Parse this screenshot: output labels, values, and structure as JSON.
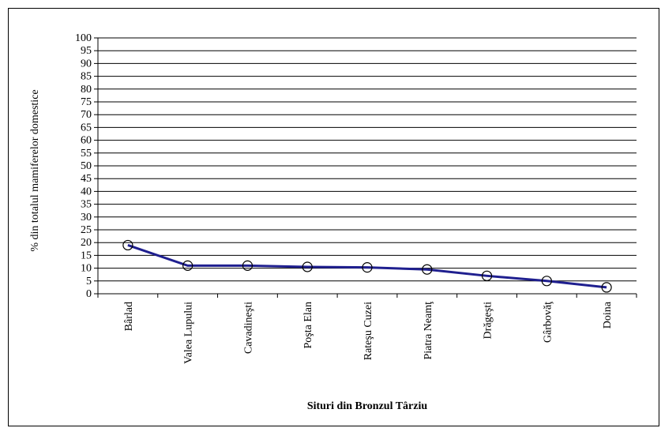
{
  "chart_data": {
    "type": "line",
    "categories": [
      "Bârlad",
      "Valea Lupului",
      "Cavadineşti",
      "Poşta Elan",
      "Rateşu Cuzei",
      "Piatra Neamţ",
      "Drăgeşti",
      "Gârbovăţ",
      "Doina"
    ],
    "values": [
      19,
      11,
      11,
      10.5,
      10.3,
      9.5,
      7,
      5,
      2.5
    ],
    "xlabel": "Situri din Bronzul Târziu",
    "ylabel": "% din totalul mamiferelor domestice",
    "ylim": [
      0,
      100
    ],
    "yticks": [
      0,
      5,
      10,
      15,
      20,
      25,
      30,
      35,
      40,
      45,
      50,
      55,
      60,
      65,
      70,
      75,
      80,
      85,
      90,
      95,
      100
    ],
    "grid": true,
    "line_color": "#1f1f8f",
    "marker": "open-circle"
  }
}
